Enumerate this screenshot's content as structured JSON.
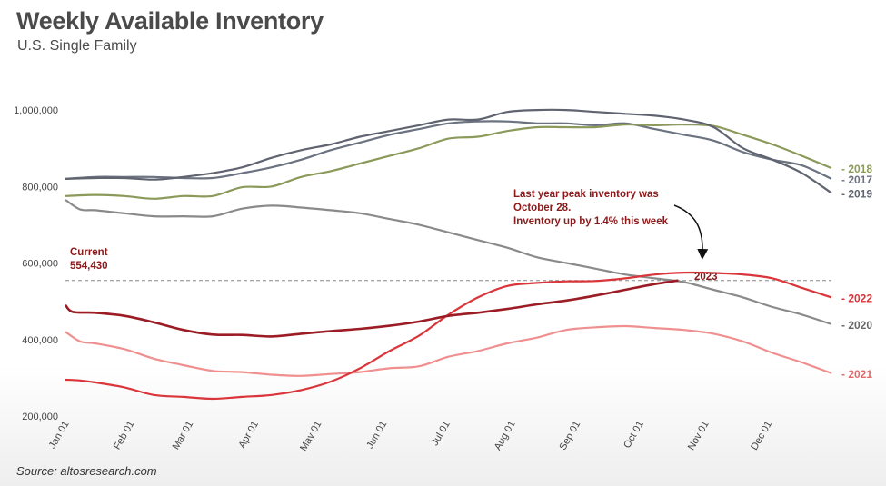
{
  "header": {
    "title": "Weekly Available Inventory",
    "subtitle": "U.S. Single Family"
  },
  "footer": {
    "source": "Source: altosresearch.com"
  },
  "chart_data": {
    "type": "line",
    "title": "Weekly Available Inventory",
    "subtitle": "U.S. Single Family",
    "xlabel": "",
    "ylabel": "",
    "ylim": [
      200000,
      1050000
    ],
    "xlim": [
      0,
      52
    ],
    "grid": false,
    "yticks": [
      {
        "value": 200000,
        "label": "200,000"
      },
      {
        "value": 400000,
        "label": "400,000"
      },
      {
        "value": 600000,
        "label": "600,000"
      },
      {
        "value": 800000,
        "label": "800,000"
      },
      {
        "value": 1000000,
        "label": "1,000,000"
      }
    ],
    "xticks": [
      {
        "week": 0,
        "label": "Jan 01"
      },
      {
        "week": 4.43,
        "label": "Feb 01"
      },
      {
        "week": 8.43,
        "label": "Mar 01"
      },
      {
        "week": 12.86,
        "label": "Apr 01"
      },
      {
        "week": 17.14,
        "label": "May 01"
      },
      {
        "week": 21.57,
        "label": "Jun 01"
      },
      {
        "week": 25.86,
        "label": "Jul 01"
      },
      {
        "week": 30.29,
        "label": "Aug 01"
      },
      {
        "week": 34.71,
        "label": "Sep 01"
      },
      {
        "week": 39,
        "label": "Oct 01"
      },
      {
        "week": 43.43,
        "label": "Nov 01"
      },
      {
        "week": 47.71,
        "label": "Dec 01"
      }
    ],
    "series": [
      {
        "name": "2017",
        "color": "#6b7280",
        "label_value": 820000,
        "x": [
          0,
          2,
          4,
          6,
          8,
          10,
          12,
          14,
          16,
          18,
          20,
          22,
          24,
          26,
          28,
          30,
          32,
          34,
          36,
          38,
          40,
          42,
          44,
          46,
          48,
          50,
          52
        ],
        "y": [
          820000,
          825000,
          825000,
          825000,
          822000,
          822000,
          835000,
          850000,
          870000,
          895000,
          915000,
          935000,
          950000,
          965000,
          970000,
          970000,
          965000,
          965000,
          960000,
          965000,
          950000,
          935000,
          920000,
          890000,
          870000,
          855000,
          820000
        ]
      },
      {
        "name": "2018",
        "color": "#8b9a5b",
        "label_value": 848000,
        "x": [
          0,
          2,
          4,
          6,
          8,
          10,
          12,
          14,
          16,
          18,
          20,
          22,
          24,
          26,
          28,
          30,
          32,
          34,
          36,
          38,
          40,
          42,
          44,
          46,
          48,
          50,
          52
        ],
        "y": [
          775000,
          778000,
          775000,
          768000,
          775000,
          775000,
          798000,
          800000,
          825000,
          840000,
          860000,
          880000,
          900000,
          925000,
          930000,
          945000,
          955000,
          955000,
          955000,
          962000,
          960000,
          962000,
          958000,
          935000,
          910000,
          880000,
          848000
        ]
      },
      {
        "name": "2019",
        "color": "#5f6470",
        "label_value": 783000,
        "x": [
          0,
          2,
          4,
          6,
          8,
          10,
          12,
          14,
          16,
          18,
          20,
          22,
          24,
          26,
          28,
          30,
          32,
          34,
          36,
          38,
          40,
          42,
          44,
          46,
          48,
          50,
          52
        ],
        "y": [
          820000,
          822000,
          822000,
          818000,
          825000,
          835000,
          850000,
          875000,
          895000,
          910000,
          930000,
          945000,
          960000,
          975000,
          975000,
          995000,
          1000000,
          1000000,
          995000,
          990000,
          985000,
          975000,
          955000,
          900000,
          870000,
          835000,
          783000
        ]
      },
      {
        "name": "2020",
        "color": "#8a8a8a",
        "label_value": 440000,
        "x": [
          0,
          1,
          2,
          4,
          6,
          8,
          10,
          12,
          14,
          16,
          18,
          20,
          22,
          24,
          26,
          28,
          30,
          32,
          34,
          36,
          38,
          40,
          42,
          44,
          46,
          48,
          50,
          52
        ],
        "y": [
          765000,
          740000,
          738000,
          730000,
          722000,
          722000,
          722000,
          742000,
          750000,
          745000,
          738000,
          730000,
          715000,
          700000,
          680000,
          660000,
          640000,
          615000,
          600000,
          585000,
          570000,
          560000,
          550000,
          530000,
          510000,
          485000,
          465000,
          440000
        ]
      },
      {
        "name": "2021",
        "color": "#f08f8f",
        "label_value": 312000,
        "x": [
          0,
          1,
          2,
          4,
          6,
          8,
          10,
          12,
          14,
          16,
          18,
          20,
          22,
          24,
          26,
          28,
          30,
          32,
          34,
          36,
          38,
          40,
          42,
          44,
          46,
          48,
          50,
          52
        ],
        "y": [
          420000,
          395000,
          390000,
          375000,
          350000,
          333000,
          318000,
          315000,
          308000,
          305000,
          310000,
          315000,
          325000,
          330000,
          355000,
          370000,
          390000,
          405000,
          425000,
          432000,
          435000,
          430000,
          425000,
          415000,
          395000,
          365000,
          340000,
          312000
        ]
      },
      {
        "name": "2022",
        "color": "#d9353a",
        "label_value": 510000,
        "x": [
          0,
          1,
          2,
          4,
          6,
          8,
          10,
          12,
          14,
          16,
          18,
          20,
          22,
          24,
          26,
          28,
          30,
          32,
          34,
          36,
          38,
          40,
          42,
          44,
          46,
          48,
          50,
          52
        ],
        "y": [
          295000,
          293000,
          288000,
          275000,
          255000,
          250000,
          245000,
          250000,
          255000,
          268000,
          290000,
          325000,
          370000,
          410000,
          465000,
          510000,
          540000,
          548000,
          552000,
          553000,
          560000,
          570000,
          575000,
          574000,
          570000,
          560000,
          535000,
          510000
        ]
      },
      {
        "name": "2023",
        "color": "#9b1c24",
        "label_value": 554430,
        "x": [
          0,
          0.5,
          2,
          4,
          6,
          8,
          10,
          12,
          14,
          16,
          18,
          20,
          22,
          24,
          26,
          28,
          30,
          32,
          34,
          36,
          38,
          40,
          41.6
        ],
        "y": [
          490000,
          472000,
          470000,
          462000,
          445000,
          425000,
          413000,
          412000,
          408000,
          415000,
          422000,
          428000,
          436000,
          447000,
          462000,
          470000,
          480000,
          492000,
          502000,
          515000,
          530000,
          545000,
          554430
        ]
      }
    ],
    "reference_line": {
      "value": 554430,
      "style": "dashed",
      "color": "#888888"
    },
    "annotations": {
      "current_label": "Current",
      "current_value": "554,430",
      "callout_lines": [
        "Last year peak inventory was",
        "October 28.",
        "Inventory up by 1.4% this week"
      ],
      "series_2023_label": "2023"
    }
  }
}
